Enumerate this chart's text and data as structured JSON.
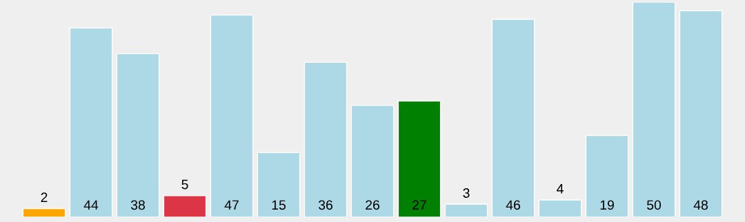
{
  "chart_data": {
    "type": "bar",
    "categories": [
      null,
      null,
      null,
      null,
      null,
      null,
      null,
      null,
      null,
      null,
      null,
      null,
      null,
      null,
      null
    ],
    "values": [
      2,
      44,
      38,
      5,
      47,
      15,
      36,
      26,
      27,
      3,
      46,
      4,
      19,
      50,
      48
    ],
    "colors": [
      "#ffa500",
      "#add8e6",
      "#add8e6",
      "#dc3545",
      "#add8e6",
      "#add8e6",
      "#add8e6",
      "#add8e6",
      "#008000",
      "#add8e6",
      "#add8e6",
      "#add8e6",
      "#add8e6",
      "#add8e6",
      "#add8e6"
    ],
    "data_labels": true,
    "tick_labels": false,
    "grid": false,
    "legend": false
  }
}
